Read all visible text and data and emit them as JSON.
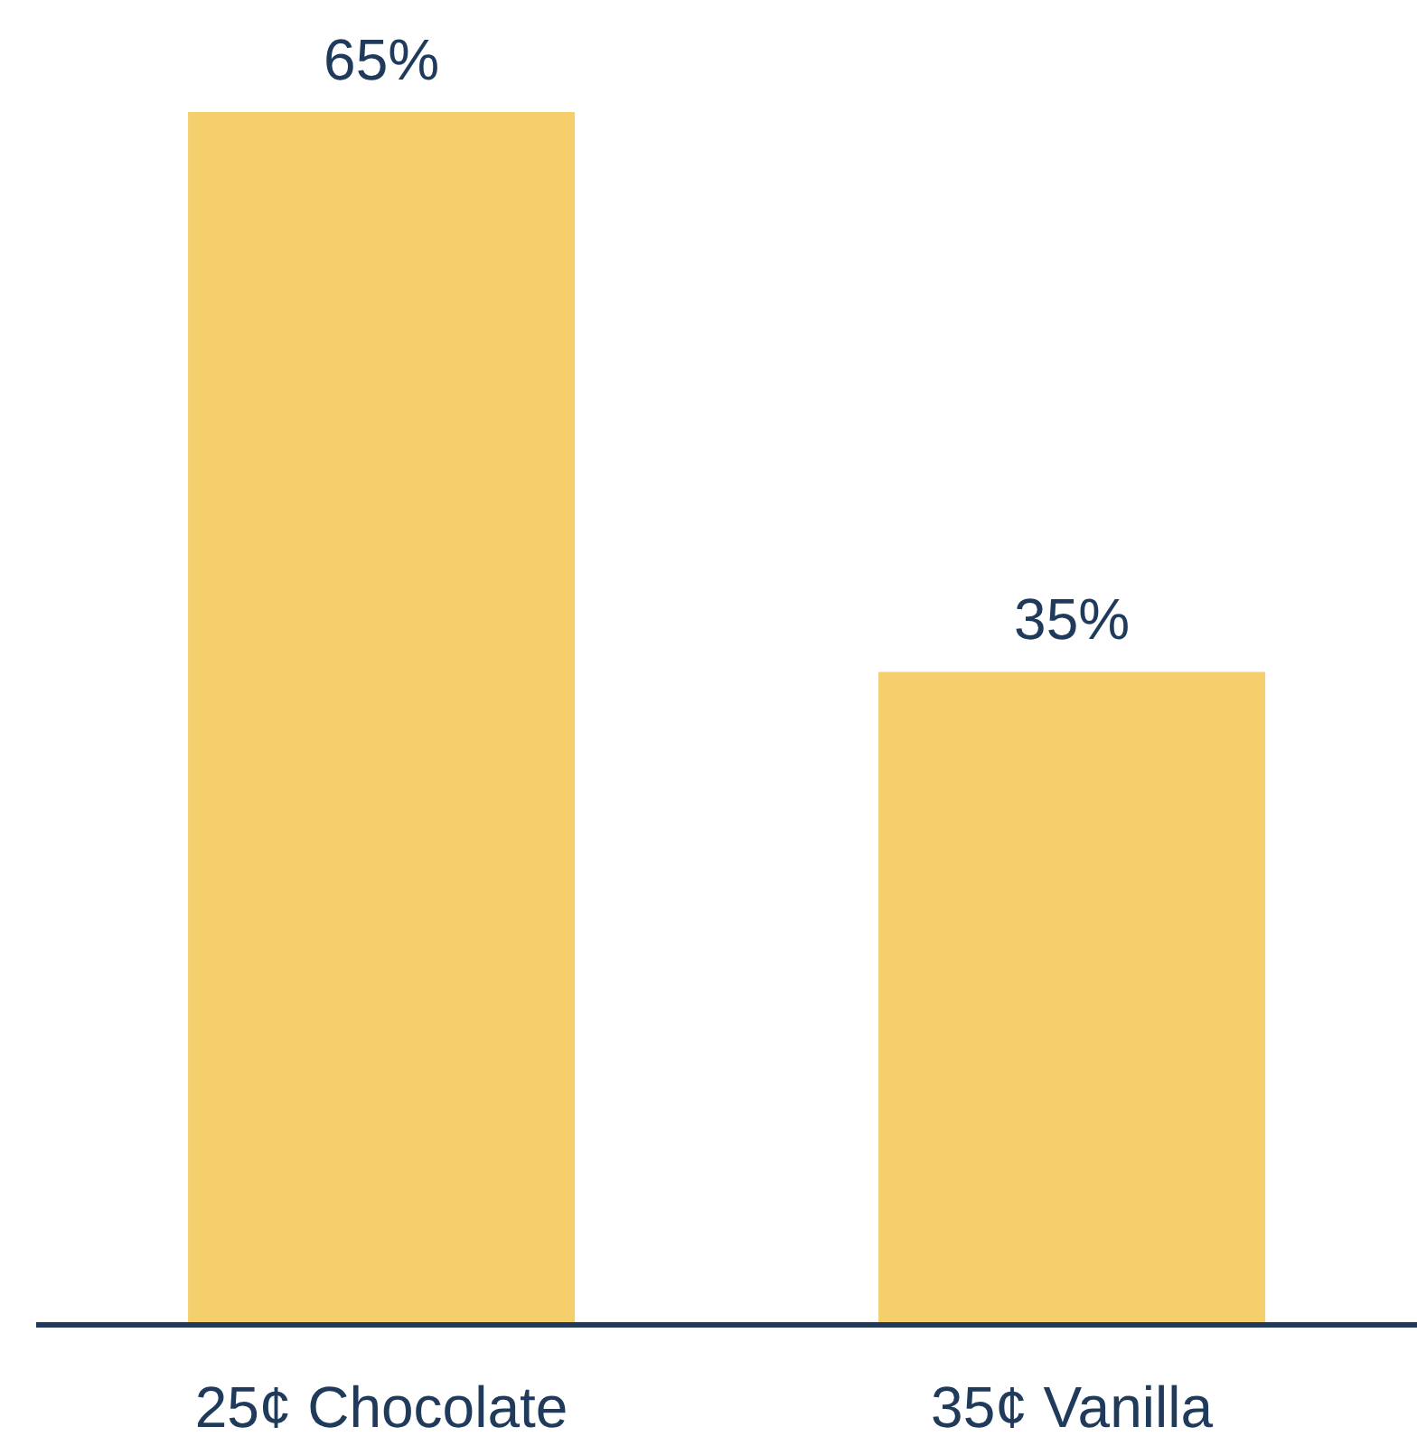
{
  "chart_data": {
    "type": "bar",
    "categories": [
      "25¢ Chocolate",
      "35¢ Vanilla"
    ],
    "values": [
      65,
      35
    ],
    "value_labels": [
      "65%",
      "35%"
    ],
    "color": "#f4cf6b"
  }
}
